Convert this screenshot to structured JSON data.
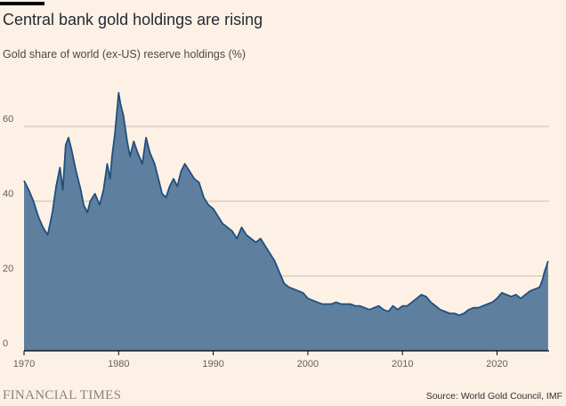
{
  "title": "Central bank gold holdings are rising",
  "subtitle": "Gold share of world (ex-US) reserve holdings (%)",
  "brand": "FINANCIAL TIMES",
  "source": "Source: World Gold Council, IMF",
  "colors": {
    "background": "#fdf1e6",
    "area_fill": "#5f7f9f",
    "line": "#1f4f80",
    "grid": "#c9bdb2",
    "baseline": "#000000"
  },
  "chart_data": {
    "type": "area",
    "title": "Central bank gold holdings are rising",
    "ylabel": "Gold share of world (ex-US) reserve holdings (%)",
    "xlim": [
      1970,
      2025.5
    ],
    "ylim": [
      0,
      70
    ],
    "x_ticks": [
      "1970",
      "1980",
      "1990",
      "2000",
      "2010",
      "2020"
    ],
    "y_ticks": [
      "0",
      "20",
      "40",
      "60"
    ],
    "grid": true,
    "x": [
      1970,
      1970.5,
      1971,
      1971.5,
      1972,
      1972.5,
      1973,
      1973.4,
      1973.8,
      1974.1,
      1974.4,
      1974.7,
      1975,
      1975.5,
      1976,
      1976.3,
      1976.7,
      1977,
      1977.5,
      1978,
      1978.4,
      1978.8,
      1979.1,
      1979.3,
      1979.6,
      1979.9,
      1980.0,
      1980.2,
      1980.5,
      1980.9,
      1981.2,
      1981.6,
      1982,
      1982.5,
      1982.9,
      1983.3,
      1983.8,
      1984.2,
      1984.6,
      1985,
      1985.4,
      1985.8,
      1986.2,
      1986.6,
      1987,
      1987.5,
      1988,
      1988.5,
      1989,
      1989.5,
      1990,
      1990.5,
      1991,
      1991.5,
      1992,
      1992.5,
      1993,
      1993.5,
      1994,
      1994.5,
      1995,
      1995.5,
      1996,
      1996.5,
      1997,
      1997.5,
      1998,
      1998.5,
      1999,
      1999.5,
      2000,
      2000.5,
      2001,
      2001.5,
      2002,
      2002.5,
      2003,
      2003.5,
      2004,
      2004.5,
      2005,
      2005.5,
      2006,
      2006.5,
      2007,
      2007.5,
      2008,
      2008.5,
      2009,
      2009.5,
      2010,
      2010.5,
      2011,
      2011.5,
      2012,
      2012.5,
      2013,
      2013.5,
      2014,
      2014.5,
      2015,
      2015.5,
      2016,
      2016.5,
      2017,
      2017.5,
      2018,
      2018.5,
      2019,
      2019.5,
      2020,
      2020.5,
      2021,
      2021.5,
      2022,
      2022.5,
      2023,
      2023.5,
      2024,
      2024.5,
      2024.8,
      2025,
      2025.2,
      2025.4
    ],
    "series": [
      {
        "values": [
          45.5,
          43,
          40,
          36,
          33,
          31,
          37,
          44,
          49,
          43,
          55,
          57,
          54,
          48,
          43,
          39,
          37,
          40,
          42,
          39,
          43,
          50,
          46,
          52,
          58,
          66,
          69,
          66,
          63,
          56,
          52,
          56,
          53,
          50,
          57,
          53,
          50,
          46,
          42,
          41,
          44,
          46,
          44,
          48,
          50,
          48,
          46,
          45,
          41,
          39,
          38,
          36,
          34,
          33,
          32,
          30,
          33,
          31,
          30,
          29,
          30,
          28,
          26,
          24,
          21,
          18,
          17,
          16.5,
          16,
          15.5,
          14,
          13.5,
          13,
          12.5,
          12.5,
          12.5,
          13,
          12.5,
          12.5,
          12.5,
          12,
          12,
          11.5,
          11,
          11.5,
          12,
          11,
          10.5,
          12,
          11,
          12,
          12,
          13,
          14,
          15,
          14.5,
          13,
          12,
          11,
          10.5,
          10,
          10,
          9.5,
          10,
          11,
          11.5,
          11.5,
          12,
          12.5,
          13,
          14,
          15.5,
          15,
          14.5,
          15,
          14,
          15,
          16,
          16.5,
          17,
          19,
          21,
          22.5,
          24
        ]
      }
    ]
  }
}
